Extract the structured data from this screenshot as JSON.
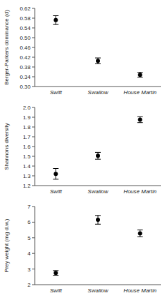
{
  "chart_data": [
    {
      "type": "errorbar",
      "y_label": "Berger-Parkers dominance (d)",
      "categories": [
        "Swift",
        "Swallow",
        "House Martin"
      ],
      "values": [
        0.572,
        0.405,
        0.348
      ],
      "errors": [
        0.018,
        0.012,
        0.01
      ],
      "ylim": [
        0.3,
        0.62
      ],
      "yticks": [
        {
          "value": 0.3,
          "label": "0.30"
        },
        0.34,
        0.38,
        0.42,
        0.46,
        {
          "value": 0.5,
          "label": "0.50"
        },
        0.54,
        0.58,
        0.62
      ],
      "color": "#000000",
      "marker": "circle",
      "grid": false
    },
    {
      "type": "errorbar",
      "y_label": "Shannons diversity",
      "categories": [
        "Swift",
        "Swallow",
        "House Martin"
      ],
      "values": [
        1.32,
        1.505,
        1.875
      ],
      "errors": [
        0.055,
        0.035,
        0.03
      ],
      "ylim": [
        1.2,
        2.0
      ],
      "yticks": [
        1.2,
        1.3,
        1.4,
        1.5,
        1.6,
        1.7,
        1.8,
        1.9,
        {
          "value": 2.0,
          "label": "2.0"
        }
      ],
      "color": "#000000",
      "marker": "circle",
      "grid": false
    },
    {
      "type": "errorbar",
      "y_label": "Prey weight (mg d.w.)",
      "categories": [
        "Swift",
        "Swallow",
        "House Martin"
      ],
      "values": [
        2.75,
        6.15,
        5.28
      ],
      "errors": [
        0.15,
        0.28,
        0.22
      ],
      "ylim": [
        2.0,
        7.0
      ],
      "yticks": [
        2,
        3,
        4,
        5,
        6,
        7
      ],
      "color": "#000000",
      "marker": "circle",
      "grid": false
    }
  ]
}
